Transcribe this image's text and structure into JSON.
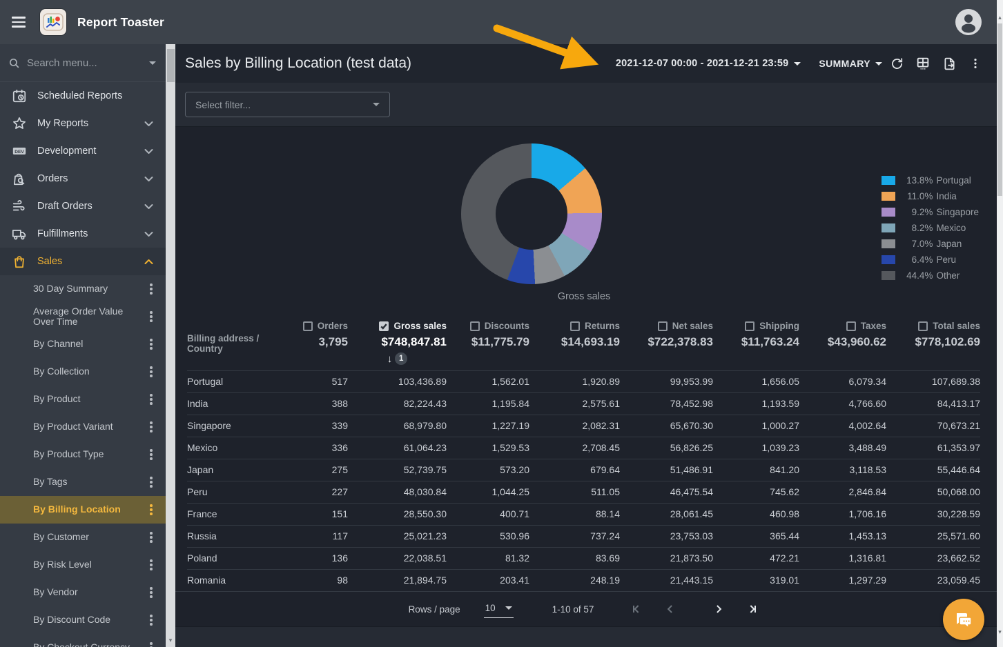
{
  "app_bar": {
    "title": "Report Toaster"
  },
  "sidebar": {
    "search_placeholder": "Search menu...",
    "items": [
      {
        "label": "Scheduled Reports",
        "icon": "calendar-clock-icon",
        "chevron": null,
        "active": false
      },
      {
        "label": "My Reports",
        "icon": "star-icon",
        "chevron": "down",
        "active": false
      },
      {
        "label": "Development",
        "icon": "dev-badge-icon",
        "chevron": "down",
        "active": false
      },
      {
        "label": "Orders",
        "icon": "order-search-icon",
        "chevron": "down",
        "active": false
      },
      {
        "label": "Draft Orders",
        "icon": "draft-orders-icon",
        "chevron": "down",
        "active": false
      },
      {
        "label": "Fulfillments",
        "icon": "truck-icon",
        "chevron": "down",
        "active": false
      },
      {
        "label": "Sales",
        "icon": "shopping-bag-icon",
        "chevron": "up",
        "active": true
      }
    ],
    "sales_children": [
      "30 Day Summary",
      "Average Order Value Over Time",
      "By Channel",
      "By Collection",
      "By Product",
      "By Product Variant",
      "By Product Type",
      "By Tags",
      "By Billing Location",
      "By Customer",
      "By Risk Level",
      "By Vendor",
      "By Discount Code",
      "By Checkout Currency"
    ],
    "selected_child": "By Billing Location"
  },
  "header": {
    "title": "Sales by Billing Location (test data)",
    "date_range": "2021-12-07 00:00 - 2021-12-21 23:59",
    "view_mode": "SUMMARY"
  },
  "filter": {
    "placeholder": "Select filter..."
  },
  "chart_data": {
    "type": "pie",
    "subtype": "donut",
    "title": "",
    "label": "Gross sales",
    "legend_position": "right",
    "slices": [
      {
        "name": "Portugal",
        "pct": 13.8,
        "color": "#18a9e8"
      },
      {
        "name": "India",
        "pct": 11.0,
        "color": "#f0a455"
      },
      {
        "name": "Singapore",
        "pct": 9.2,
        "color": "#a88bc9"
      },
      {
        "name": "Mexico",
        "pct": 8.2,
        "color": "#7fa6b8"
      },
      {
        "name": "Japan",
        "pct": 7.0,
        "color": "#8b8e92"
      },
      {
        "name": "Peru",
        "pct": 6.4,
        "color": "#2747ab"
      },
      {
        "name": "Other",
        "pct": 44.4,
        "color": "#55585d"
      }
    ]
  },
  "table": {
    "row_header": "Billing address / Country",
    "columns": [
      {
        "label": "Orders",
        "total": "3,795",
        "checked": false
      },
      {
        "label": "Gross sales",
        "total": "$748,847.81",
        "checked": true,
        "sort_dir": "desc",
        "sort_rank": "1"
      },
      {
        "label": "Discounts",
        "total": "$11,775.79",
        "checked": false
      },
      {
        "label": "Returns",
        "total": "$14,693.19",
        "checked": false
      },
      {
        "label": "Net sales",
        "total": "$722,378.83",
        "checked": false
      },
      {
        "label": "Shipping",
        "total": "$11,763.24",
        "checked": false
      },
      {
        "label": "Taxes",
        "total": "$43,960.62",
        "checked": false
      },
      {
        "label": "Total sales",
        "total": "$778,102.69",
        "checked": false
      }
    ],
    "rows": [
      {
        "country": "Portugal",
        "values": [
          "517",
          "103,436.89",
          "1,562.01",
          "1,920.89",
          "99,953.99",
          "1,656.05",
          "6,079.34",
          "107,689.38"
        ]
      },
      {
        "country": "India",
        "values": [
          "388",
          "82,224.43",
          "1,195.84",
          "2,575.61",
          "78,452.98",
          "1,193.59",
          "4,766.60",
          "84,413.17"
        ]
      },
      {
        "country": "Singapore",
        "values": [
          "339",
          "68,979.80",
          "1,227.19",
          "2,082.31",
          "65,670.30",
          "1,000.27",
          "4,002.64",
          "70,673.21"
        ]
      },
      {
        "country": "Mexico",
        "values": [
          "336",
          "61,064.23",
          "1,529.53",
          "2,708.45",
          "56,826.25",
          "1,039.23",
          "3,488.49",
          "61,353.97"
        ]
      },
      {
        "country": "Japan",
        "values": [
          "275",
          "52,739.75",
          "573.20",
          "679.64",
          "51,486.91",
          "841.20",
          "3,118.53",
          "55,446.64"
        ]
      },
      {
        "country": "Peru",
        "values": [
          "227",
          "48,030.84",
          "1,044.25",
          "511.05",
          "46,475.54",
          "745.62",
          "2,846.84",
          "50,068.00"
        ]
      },
      {
        "country": "France",
        "values": [
          "151",
          "28,550.30",
          "400.71",
          "88.14",
          "28,061.45",
          "460.98",
          "1,706.16",
          "30,228.59"
        ]
      },
      {
        "country": "Russia",
        "values": [
          "117",
          "25,021.23",
          "530.96",
          "737.24",
          "23,753.03",
          "365.44",
          "1,453.13",
          "25,571.60"
        ]
      },
      {
        "country": "Poland",
        "values": [
          "136",
          "22,038.51",
          "81.32",
          "83.69",
          "21,873.50",
          "472.21",
          "1,316.81",
          "23,662.52"
        ]
      },
      {
        "country": "Romania",
        "values": [
          "98",
          "21,894.75",
          "203.41",
          "248.19",
          "21,443.15",
          "319.01",
          "1,297.29",
          "23,059.45"
        ]
      }
    ]
  },
  "pagination": {
    "rows_per_page_label": "Rows / page",
    "rows_per_page": "10",
    "range": "1-10 of 57"
  },
  "colors": {
    "accent_amber": "#f0b232",
    "selected_bg": "#6b6036",
    "topbar_bg": "#3d434b",
    "sidebar_bg": "#353b44",
    "content_bg": "#1e222b",
    "fab_bg": "#f2a637",
    "annotation_arrow": "#f7a80d"
  }
}
